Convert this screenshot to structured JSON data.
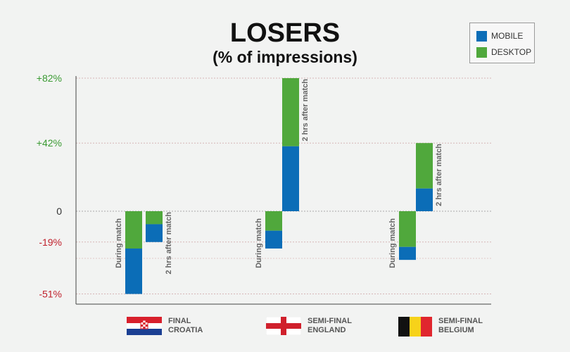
{
  "chart_data": {
    "type": "bar",
    "title": "LOSERS",
    "subtitle": "(% of impressions)",
    "xlabel": "",
    "ylabel": "",
    "ylim": [
      -58,
      82
    ],
    "y_ticks": [
      {
        "value": 82,
        "label": "+82%",
        "color": "#3a9a32"
      },
      {
        "value": 42,
        "label": "+42%",
        "color": "#3a9a32"
      },
      {
        "value": 0,
        "label": "0",
        "color": "#333333"
      },
      {
        "value": -19,
        "label": "-19%",
        "color": "#c0202c"
      },
      {
        "value": -51,
        "label": "-51%",
        "color": "#c0202c"
      }
    ],
    "grid": true,
    "legend": {
      "position": "top-right",
      "items": [
        {
          "name": "MOBILE",
          "color": "#0b6db7"
        },
        {
          "name": "DESKTOP",
          "color": "#50a83c"
        }
      ]
    },
    "bar_labels": {
      "during": "During match",
      "after": "2 hrs after match"
    },
    "groups": [
      {
        "line1": "FINAL",
        "line2": "CROATIA",
        "flag": "croatia",
        "bars": [
          {
            "label": "During match",
            "mobile": -28,
            "desktop": -23
          },
          {
            "label": "2 hrs after match",
            "mobile": -11,
            "desktop": -8
          }
        ]
      },
      {
        "line1": "SEMI-FINAL",
        "line2": "ENGLAND",
        "flag": "england",
        "bars": [
          {
            "label": "During match",
            "mobile": -11,
            "desktop": -12
          },
          {
            "label": "2 hrs after match",
            "mobile": 40,
            "desktop": 42
          }
        ]
      },
      {
        "line1": "SEMI-FINAL",
        "line2": "BELGIUM",
        "flag": "belgium",
        "bars": [
          {
            "label": "During match",
            "mobile": -8,
            "desktop": -22
          },
          {
            "label": "2 hrs after match",
            "mobile": 14,
            "desktop": 28
          }
        ]
      }
    ]
  }
}
